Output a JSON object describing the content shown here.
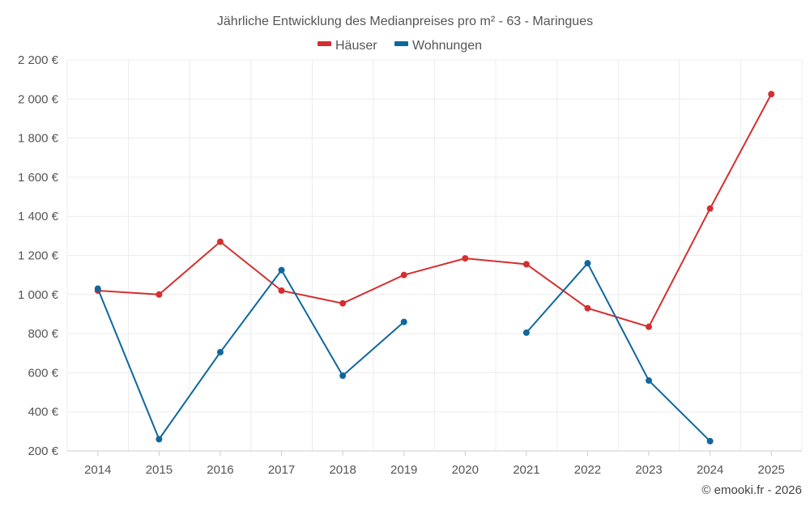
{
  "chart_data": {
    "type": "line",
    "title": "Jährliche Entwicklung des Medianpreises pro m² - 63 - Maringues",
    "categories": [
      "2014",
      "2015",
      "2016",
      "2017",
      "2018",
      "2019",
      "2020",
      "2021",
      "2022",
      "2023",
      "2024",
      "2025"
    ],
    "ylim": [
      200,
      2200
    ],
    "yticks": [
      200,
      400,
      600,
      800,
      1000,
      1200,
      1400,
      1600,
      1800,
      2000,
      2200
    ],
    "ytick_labels": [
      "200 €",
      "400 €",
      "600 €",
      "800 €",
      "1 000 €",
      "1 200 €",
      "1 400 €",
      "1 600 €",
      "1 800 €",
      "2 000 €",
      "2 200 €"
    ],
    "grid": true,
    "legend_position": "top-center",
    "series": [
      {
        "name": "Häuser",
        "color": "#d32f2f",
        "values": [
          1020,
          1000,
          1270,
          1020,
          955,
          1100,
          1185,
          1155,
          930,
          835,
          1440,
          2025
        ]
      },
      {
        "name": "Wohnungen",
        "color": "#0f679e",
        "values": [
          1030,
          260,
          705,
          1125,
          585,
          860,
          null,
          805,
          1160,
          560,
          250,
          null
        ]
      }
    ]
  },
  "footer": {
    "credit": "© emooki.fr - 2026"
  }
}
